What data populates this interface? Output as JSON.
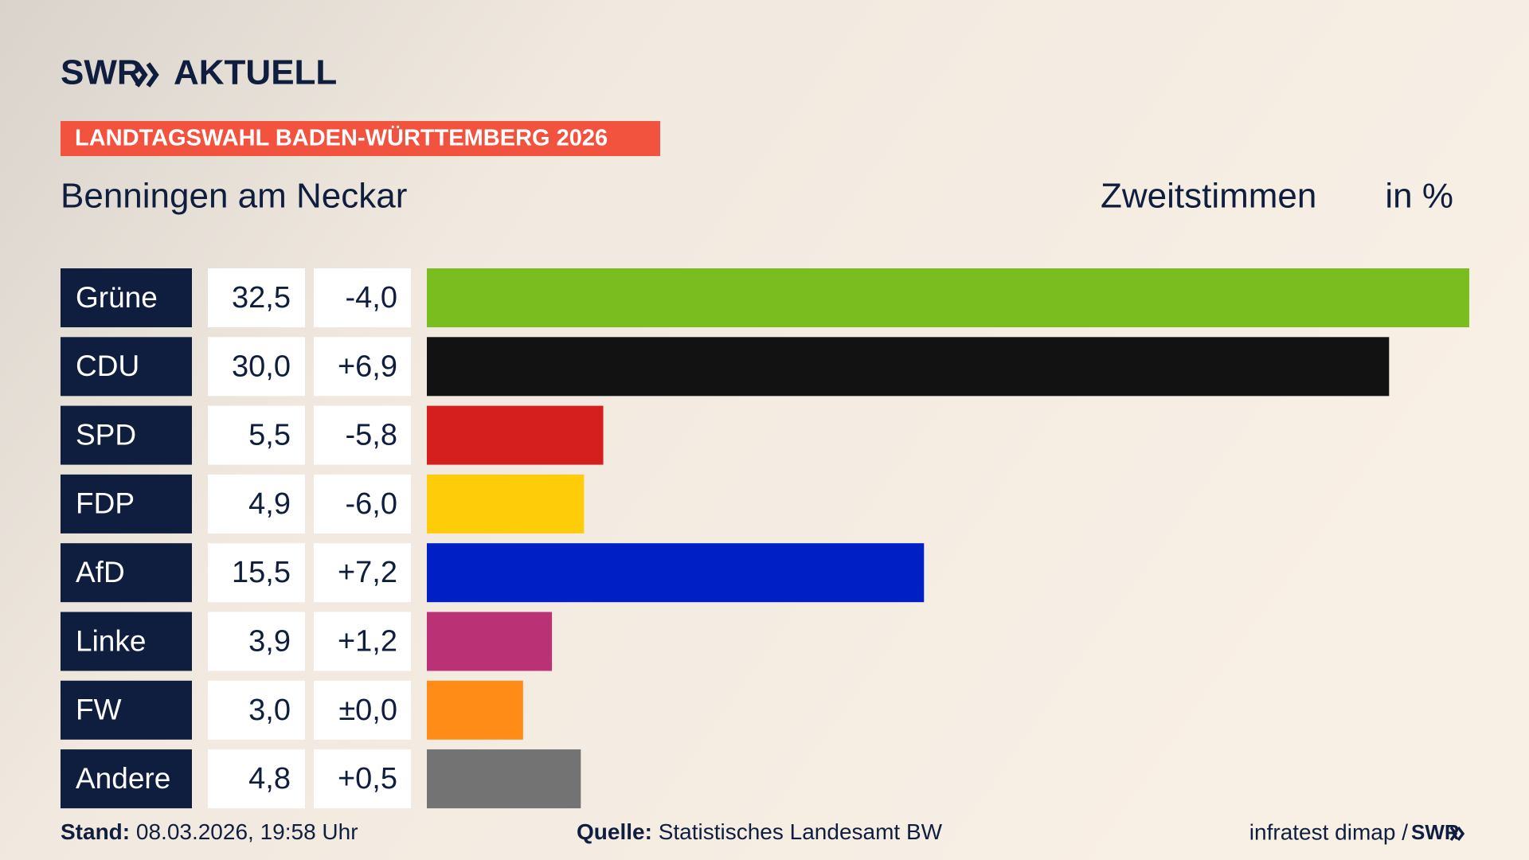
{
  "chart_data": {
    "type": "bar",
    "logo": {
      "brand": "SWR",
      "section": "AKTUELL"
    },
    "banner": "LANDTAGSWAHL BADEN-WÜRTTEMBERG 2026",
    "title": "Benningen am Neckar",
    "measure": "Zweitstimmen",
    "unit": "in %",
    "categories": [
      "Grüne",
      "CDU",
      "SPD",
      "FDP",
      "AfD",
      "Linke",
      "FW",
      "Andere"
    ],
    "values": [
      32.5,
      30.0,
      5.5,
      4.9,
      15.5,
      3.9,
      3.0,
      4.8
    ],
    "value_labels": [
      "32,5",
      "30,0",
      "5,5",
      "4,9",
      "15,5",
      "3,9",
      "3,0",
      "4,8"
    ],
    "colors": [
      "#7abd1e",
      "#121212",
      "#d51f1f",
      "#ffcc0a",
      "#0020c6",
      "#bb3176",
      "#ff8c17",
      "#737373"
    ],
    "changes": {
      "values": [
        -4.0,
        6.9,
        -5.8,
        -6.0,
        7.2,
        1.2,
        0.0,
        0.5
      ],
      "value_labels": [
        "-4,0",
        "+6,9",
        "-5,8",
        "-6,0",
        "+7,2",
        "+1,2",
        "±0,0",
        "+0,5"
      ]
    },
    "footer": {
      "stand_label": "Stand:",
      "stand": "08.03.2026, 19:58 Uhr",
      "source_label": "Quelle:",
      "source": "Statistisches Landesamt BW",
      "credit": "infratest dimap /",
      "credit_logo": "SWR"
    }
  }
}
